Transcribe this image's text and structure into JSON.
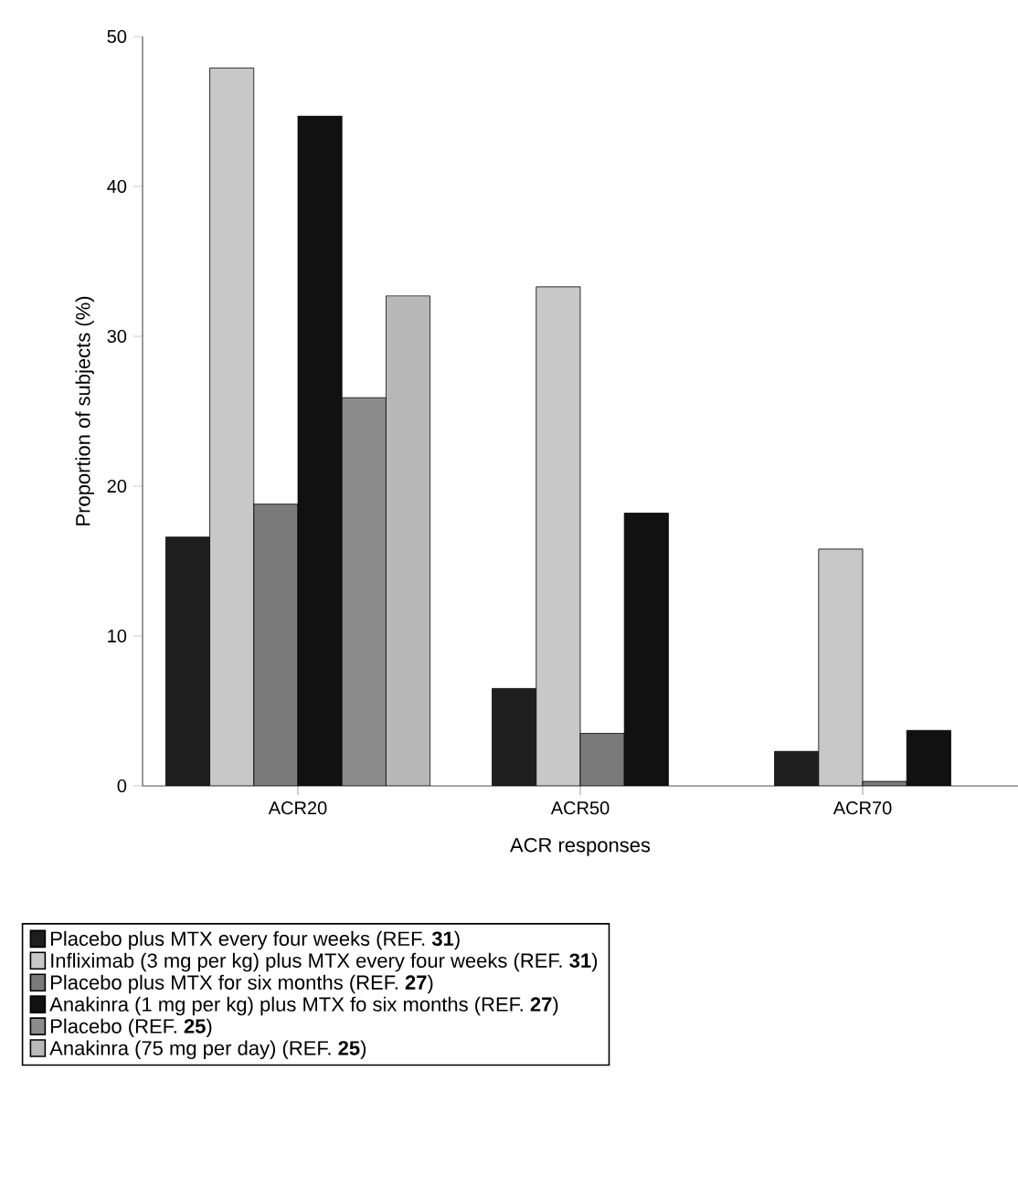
{
  "chart_data": {
    "type": "bar",
    "xlabel": "ACR responses",
    "ylabel": "Proportion of subjects (%)",
    "categories": [
      "ACR20",
      "ACR50",
      "ACR70"
    ],
    "series": [
      {
        "name": "Placebo plus MTX every four weeks (REF. **31**)",
        "color": "#1e1e1e",
        "values": [
          16.6,
          6.5,
          2.3
        ]
      },
      {
        "name": "Infliximab (3 mg per kg) plus MTX every four weeks (REF. **31**)",
        "color": "#c8c8c8",
        "values": [
          47.9,
          33.3,
          15.8
        ]
      },
      {
        "name": "Placebo plus MTX for six months (REF. **27**)",
        "color": "#7a7a7a",
        "values": [
          18.8,
          3.5,
          0.3
        ]
      },
      {
        "name": "Anakinra (1 mg per kg) plus MTX fo six months (REF. **27**)",
        "color": "#111111",
        "values": [
          44.7,
          18.2,
          3.7
        ]
      },
      {
        "name": "Placebo (REF. **25**)",
        "color": "#8c8c8c",
        "values": [
          25.9,
          null,
          null
        ]
      },
      {
        "name": "Anakinra (75 mg per day) (REF. **25**)",
        "color": "#b8b8b8",
        "values": [
          32.7,
          null,
          null
        ]
      }
    ],
    "ylim": [
      0,
      50
    ],
    "yticks": [
      0,
      10,
      20,
      30,
      40,
      50
    ],
    "grid": false,
    "legend": "bottom"
  }
}
